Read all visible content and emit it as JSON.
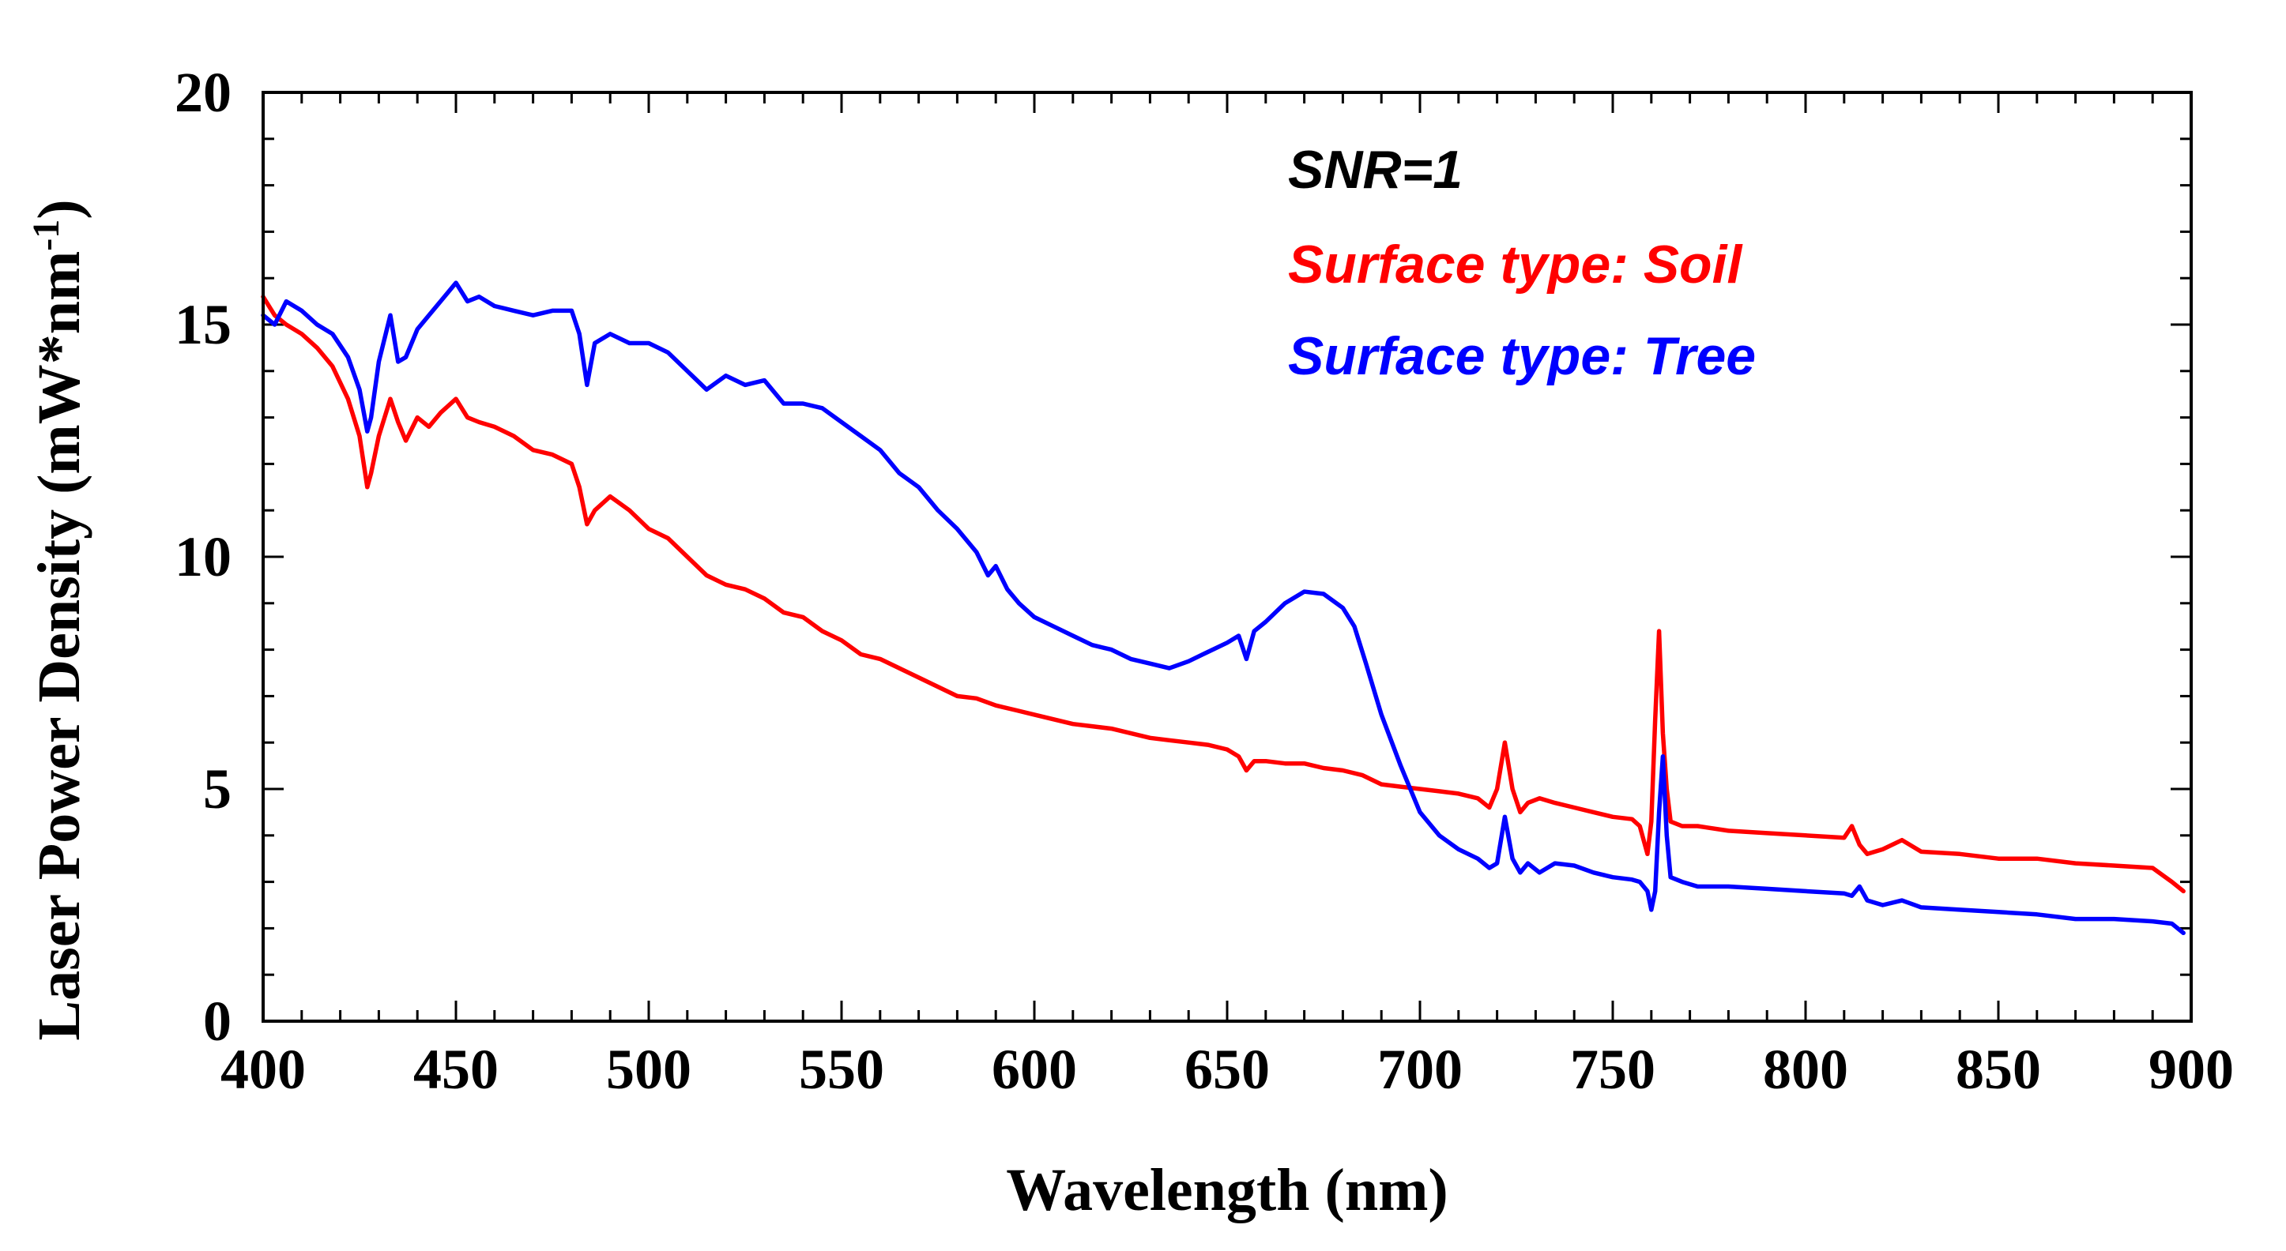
{
  "chart_data": {
    "type": "line",
    "title": "",
    "xlabel": "Wavelength (nm)",
    "ylabel": "Laser Power Density (mW*nm",
    "ylabel_superscript": "-1",
    "ylabel_close": ")",
    "xlim": [
      400,
      900
    ],
    "ylim": [
      0,
      20
    ],
    "xticks": [
      400,
      450,
      500,
      550,
      600,
      650,
      700,
      750,
      800,
      850,
      900
    ],
    "yticks": [
      0,
      5,
      10,
      15,
      20
    ],
    "xtick_labels": [
      "400",
      "450",
      "500",
      "550",
      "600",
      "650",
      "700",
      "750",
      "800",
      "850",
      "900"
    ],
    "ytick_labels": [
      "0",
      "5",
      "10",
      "15",
      "20"
    ],
    "annotation": "SNR=1",
    "series": [
      {
        "name": "Surface type: Soil",
        "color": "#ff0000",
        "x": [
          400,
          403,
          406,
          410,
          414,
          418,
          422,
          425,
          427,
          428,
          430,
          433,
          435,
          437,
          440,
          443,
          446,
          450,
          453,
          456,
          460,
          465,
          470,
          475,
          480,
          482,
          484,
          486,
          490,
          495,
          500,
          505,
          510,
          515,
          520,
          525,
          530,
          535,
          540,
          545,
          550,
          555,
          560,
          565,
          570,
          575,
          580,
          585,
          590,
          595,
          600,
          605,
          610,
          615,
          620,
          625,
          630,
          635,
          640,
          645,
          650,
          653,
          655,
          657,
          660,
          665,
          670,
          675,
          680,
          685,
          690,
          695,
          700,
          705,
          710,
          715,
          718,
          720,
          722,
          724,
          726,
          728,
          731,
          735,
          740,
          745,
          750,
          755,
          757,
          759,
          760,
          761,
          762,
          763,
          764,
          765,
          768,
          772,
          780,
          790,
          800,
          810,
          812,
          814,
          816,
          820,
          825,
          830,
          840,
          850,
          860,
          870,
          880,
          890,
          895,
          898
        ],
        "values": [
          15.6,
          15.2,
          15.0,
          14.8,
          14.5,
          14.1,
          13.4,
          12.6,
          11.5,
          11.8,
          12.6,
          13.4,
          12.9,
          12.5,
          13.0,
          12.8,
          13.1,
          13.4,
          13.0,
          12.9,
          12.8,
          12.6,
          12.3,
          12.2,
          12.0,
          11.5,
          10.7,
          11.0,
          11.3,
          11.0,
          10.6,
          10.4,
          10.0,
          9.6,
          9.4,
          9.3,
          9.1,
          8.8,
          8.7,
          8.4,
          8.2,
          7.9,
          7.8,
          7.6,
          7.4,
          7.2,
          7.0,
          6.95,
          6.8,
          6.7,
          6.6,
          6.5,
          6.4,
          6.35,
          6.3,
          6.2,
          6.1,
          6.05,
          6.0,
          5.95,
          5.85,
          5.7,
          5.4,
          5.6,
          5.6,
          5.55,
          5.55,
          5.45,
          5.4,
          5.3,
          5.1,
          5.05,
          5.0,
          4.95,
          4.9,
          4.8,
          4.6,
          5.0,
          6.0,
          5.0,
          4.5,
          4.7,
          4.8,
          4.7,
          4.6,
          4.5,
          4.4,
          4.35,
          4.2,
          3.6,
          4.3,
          6.5,
          8.4,
          6.2,
          5.0,
          4.3,
          4.2,
          4.2,
          4.1,
          4.05,
          4.0,
          3.95,
          4.2,
          3.8,
          3.6,
          3.7,
          3.9,
          3.65,
          3.6,
          3.5,
          3.5,
          3.4,
          3.35,
          3.3,
          3.0,
          2.8
        ]
      },
      {
        "name": "Surface type: Tree",
        "color": "#0000ff",
        "x": [
          400,
          403,
          406,
          410,
          414,
          418,
          422,
          425,
          427,
          428,
          430,
          433,
          435,
          437,
          440,
          443,
          446,
          450,
          453,
          456,
          460,
          465,
          470,
          475,
          480,
          482,
          484,
          486,
          490,
          495,
          500,
          505,
          510,
          515,
          520,
          525,
          530,
          535,
          540,
          545,
          550,
          555,
          560,
          565,
          570,
          575,
          580,
          585,
          588,
          590,
          593,
          596,
          600,
          605,
          610,
          615,
          620,
          625,
          630,
          635,
          640,
          645,
          650,
          653,
          655,
          657,
          660,
          665,
          670,
          675,
          680,
          683,
          686,
          690,
          695,
          700,
          705,
          710,
          715,
          718,
          720,
          722,
          724,
          726,
          728,
          731,
          735,
          740,
          745,
          750,
          755,
          757,
          759,
          760,
          761,
          762,
          763,
          764,
          765,
          768,
          772,
          780,
          790,
          800,
          810,
          812,
          814,
          816,
          820,
          825,
          830,
          840,
          850,
          860,
          870,
          880,
          890,
          895,
          898
        ],
        "values": [
          15.2,
          15.0,
          15.5,
          15.3,
          15.0,
          14.8,
          14.3,
          13.6,
          12.7,
          13.0,
          14.2,
          15.2,
          14.2,
          14.3,
          14.9,
          15.2,
          15.5,
          15.9,
          15.5,
          15.6,
          15.4,
          15.3,
          15.2,
          15.3,
          15.3,
          14.8,
          13.7,
          14.6,
          14.8,
          14.6,
          14.6,
          14.4,
          14.0,
          13.6,
          13.9,
          13.7,
          13.8,
          13.3,
          13.3,
          13.2,
          12.9,
          12.6,
          12.3,
          11.8,
          11.5,
          11.0,
          10.6,
          10.1,
          9.6,
          9.8,
          9.3,
          9.0,
          8.7,
          8.5,
          8.3,
          8.1,
          8.0,
          7.8,
          7.7,
          7.6,
          7.75,
          7.95,
          8.15,
          8.3,
          7.8,
          8.4,
          8.6,
          9.0,
          9.25,
          9.2,
          8.9,
          8.5,
          7.7,
          6.6,
          5.5,
          4.5,
          4.0,
          3.7,
          3.5,
          3.3,
          3.4,
          4.4,
          3.5,
          3.2,
          3.4,
          3.2,
          3.4,
          3.35,
          3.2,
          3.1,
          3.05,
          3.0,
          2.8,
          2.4,
          2.8,
          4.5,
          5.7,
          4.0,
          3.1,
          3.0,
          2.9,
          2.9,
          2.85,
          2.8,
          2.75,
          2.7,
          2.9,
          2.6,
          2.5,
          2.6,
          2.45,
          2.4,
          2.35,
          2.3,
          2.2,
          2.2,
          2.15,
          2.1,
          1.9
        ]
      }
    ]
  }
}
